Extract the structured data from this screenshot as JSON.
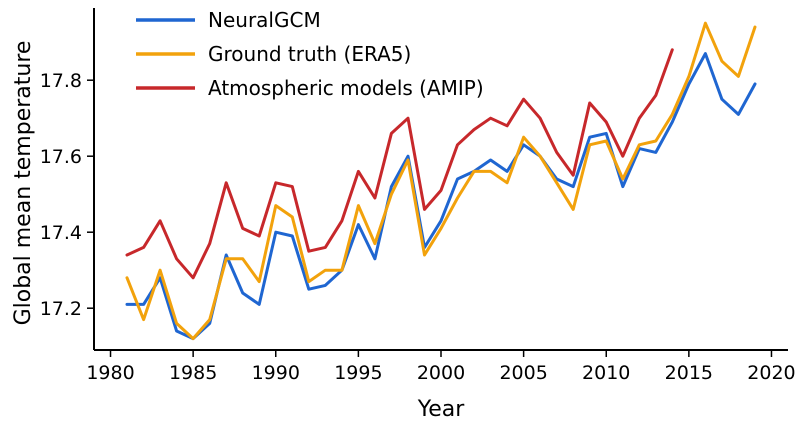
{
  "chart_data": {
    "type": "line",
    "title": "",
    "xlabel": "Year",
    "ylabel": "Global mean temperature",
    "xlim": [
      1979,
      2021
    ],
    "ylim": [
      17.09,
      17.99
    ],
    "xticks": [
      1980,
      1985,
      1990,
      1995,
      2000,
      2005,
      2010,
      2015,
      2020
    ],
    "yticks": [
      17.2,
      17.4,
      17.6,
      17.8
    ],
    "ytick_labels": [
      "17.2",
      "17.4",
      "17.6",
      "17.8"
    ],
    "grid": false,
    "legend_position": "top-left",
    "series": [
      {
        "name": "NeuralGCM",
        "color": "#1f66d1",
        "x": [
          1981,
          1982,
          1983,
          1984,
          1985,
          1986,
          1987,
          1988,
          1989,
          1990,
          1991,
          1992,
          1993,
          1994,
          1995,
          1996,
          1997,
          1998,
          1999,
          2000,
          2001,
          2002,
          2003,
          2004,
          2005,
          2006,
          2007,
          2008,
          2009,
          2010,
          2011,
          2012,
          2013,
          2014,
          2015,
          2016,
          2017,
          2018,
          2019
        ],
        "values": [
          17.21,
          17.21,
          17.28,
          17.14,
          17.12,
          17.16,
          17.34,
          17.24,
          17.21,
          17.4,
          17.39,
          17.25,
          17.26,
          17.3,
          17.42,
          17.33,
          17.52,
          17.6,
          17.36,
          17.43,
          17.54,
          17.56,
          17.59,
          17.56,
          17.63,
          17.6,
          17.54,
          17.52,
          17.65,
          17.66,
          17.52,
          17.62,
          17.61,
          17.69,
          17.79,
          17.87,
          17.75,
          17.71,
          17.79
        ]
      },
      {
        "name": "Ground truth (ERA5)",
        "color": "#f2a20c",
        "x": [
          1981,
          1982,
          1983,
          1984,
          1985,
          1986,
          1987,
          1988,
          1989,
          1990,
          1991,
          1992,
          1993,
          1994,
          1995,
          1996,
          1997,
          1998,
          1999,
          2000,
          2001,
          2002,
          2003,
          2004,
          2005,
          2006,
          2007,
          2008,
          2009,
          2010,
          2011,
          2012,
          2013,
          2014,
          2015,
          2016,
          2017,
          2018,
          2019
        ],
        "values": [
          17.28,
          17.17,
          17.3,
          17.16,
          17.12,
          17.17,
          17.33,
          17.33,
          17.27,
          17.47,
          17.44,
          17.27,
          17.3,
          17.3,
          17.47,
          17.37,
          17.5,
          17.59,
          17.34,
          17.41,
          17.49,
          17.56,
          17.56,
          17.53,
          17.65,
          17.6,
          17.53,
          17.46,
          17.63,
          17.64,
          17.54,
          17.63,
          17.64,
          17.71,
          17.81,
          17.95,
          17.85,
          17.81,
          17.94
        ]
      },
      {
        "name": "Atmospheric models (AMIP)",
        "color": "#c7282b",
        "x": [
          1981,
          1982,
          1983,
          1984,
          1985,
          1986,
          1987,
          1988,
          1989,
          1990,
          1991,
          1992,
          1993,
          1994,
          1995,
          1996,
          1997,
          1998,
          1999,
          2000,
          2001,
          2002,
          2003,
          2004,
          2005,
          2006,
          2007,
          2008,
          2009,
          2010,
          2011,
          2012,
          2013,
          2014
        ],
        "values": [
          17.34,
          17.36,
          17.43,
          17.33,
          17.28,
          17.37,
          17.53,
          17.41,
          17.39,
          17.53,
          17.52,
          17.35,
          17.36,
          17.43,
          17.56,
          17.49,
          17.66,
          17.7,
          17.46,
          17.51,
          17.63,
          17.67,
          17.7,
          17.68,
          17.75,
          17.7,
          17.61,
          17.55,
          17.74,
          17.69,
          17.6,
          17.7,
          17.76,
          17.88
        ]
      }
    ]
  }
}
